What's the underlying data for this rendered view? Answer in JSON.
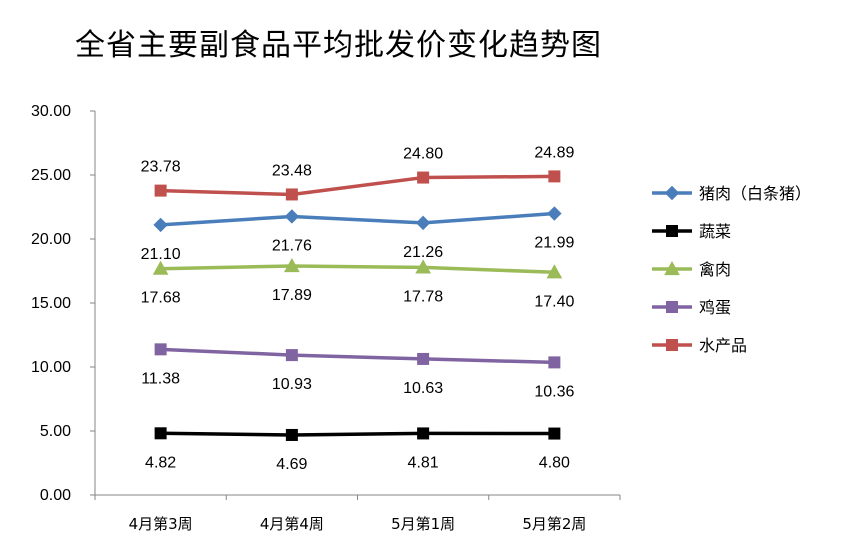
{
  "chart_data": {
    "type": "line",
    "title": "全省主要副食品平均批发价变化趋势图",
    "categories": [
      "4月第3周",
      "4月第4周",
      "5月第1周",
      "5月第2周"
    ],
    "ylim": [
      0,
      30
    ],
    "yticks": [
      "0.00",
      "5.00",
      "10.00",
      "15.00",
      "20.00",
      "25.00",
      "30.00"
    ],
    "grid": false,
    "legend_position": "right",
    "series": [
      {
        "name": "猪肉（白条猪）",
        "values": [
          21.1,
          21.76,
          21.26,
          21.99
        ],
        "labels": [
          "21.10",
          "21.76",
          "21.26",
          "21.99"
        ],
        "color": "#4a7ebb",
        "marker": "diamond",
        "label_pos": "below"
      },
      {
        "name": "蔬菜",
        "values": [
          4.82,
          4.69,
          4.81,
          4.8
        ],
        "labels": [
          "4.82",
          "4.69",
          "4.81",
          "4.80"
        ],
        "color": "#000000",
        "marker": "square",
        "label_pos": "below"
      },
      {
        "name": "禽肉",
        "values": [
          17.68,
          17.89,
          17.78,
          17.4
        ],
        "labels": [
          "17.68",
          "17.89",
          "17.78",
          "17.40"
        ],
        "color": "#9bbb59",
        "marker": "triangle",
        "label_pos": "below"
      },
      {
        "name": "鸡蛋",
        "values": [
          11.38,
          10.93,
          10.63,
          10.36
        ],
        "labels": [
          "11.38",
          "10.93",
          "10.63",
          "10.36"
        ],
        "color": "#8064a2",
        "marker": "square",
        "label_pos": "below"
      },
      {
        "name": "水产品",
        "values": [
          23.78,
          23.48,
          24.8,
          24.89
        ],
        "labels": [
          "23.78",
          "23.48",
          "24.80",
          "24.89"
        ],
        "color": "#c0504d",
        "marker": "square",
        "label_pos": "above"
      }
    ]
  }
}
